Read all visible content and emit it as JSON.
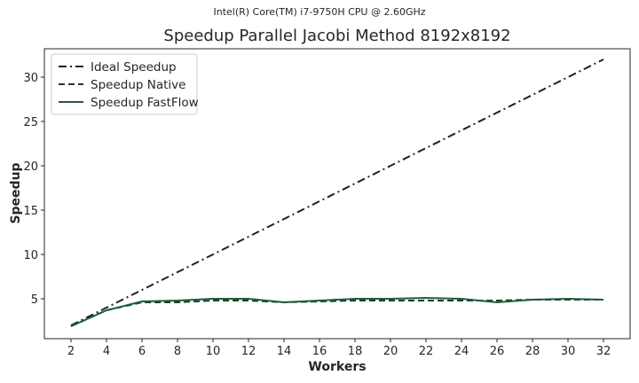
{
  "chart_data": {
    "type": "line",
    "suptitle": "Intel(R) Core(TM) i7-9750H CPU @ 2.60GHz",
    "title": "Speedup Parallel Jacobi Method 8192x8192",
    "xlabel": "Workers",
    "ylabel": "Speedup",
    "xlim": [
      0.5,
      33.5
    ],
    "ylim": [
      0.5,
      33.2
    ],
    "xticks": [
      2,
      4,
      6,
      8,
      10,
      12,
      14,
      16,
      18,
      20,
      22,
      24,
      26,
      28,
      30,
      32
    ],
    "yticks": [
      5,
      10,
      15,
      20,
      25,
      30
    ],
    "grid": false,
    "legend_position": "top-left",
    "x": [
      2,
      4,
      6,
      8,
      10,
      12,
      14,
      16,
      18,
      20,
      22,
      24,
      26,
      28,
      30,
      32
    ],
    "series": [
      {
        "name": "Ideal Speedup",
        "style": "dashdot",
        "color": "#222222",
        "values": [
          2,
          4,
          6,
          8,
          10,
          12,
          14,
          16,
          18,
          20,
          22,
          24,
          26,
          28,
          30,
          32
        ]
      },
      {
        "name": "Speedup Native",
        "style": "dashed",
        "color": "#1e3a2b",
        "values": [
          1.9,
          3.7,
          4.6,
          4.6,
          4.8,
          4.8,
          4.6,
          4.7,
          4.8,
          4.8,
          4.8,
          4.8,
          4.8,
          4.9,
          4.9,
          4.9
        ]
      },
      {
        "name": "Speedup FastFlow",
        "style": "solid",
        "color": "#1f5e38",
        "values": [
          1.9,
          3.7,
          4.7,
          4.8,
          5.0,
          5.0,
          4.6,
          4.8,
          5.0,
          5.0,
          5.1,
          5.0,
          4.6,
          4.9,
          5.0,
          4.9
        ]
      }
    ]
  }
}
